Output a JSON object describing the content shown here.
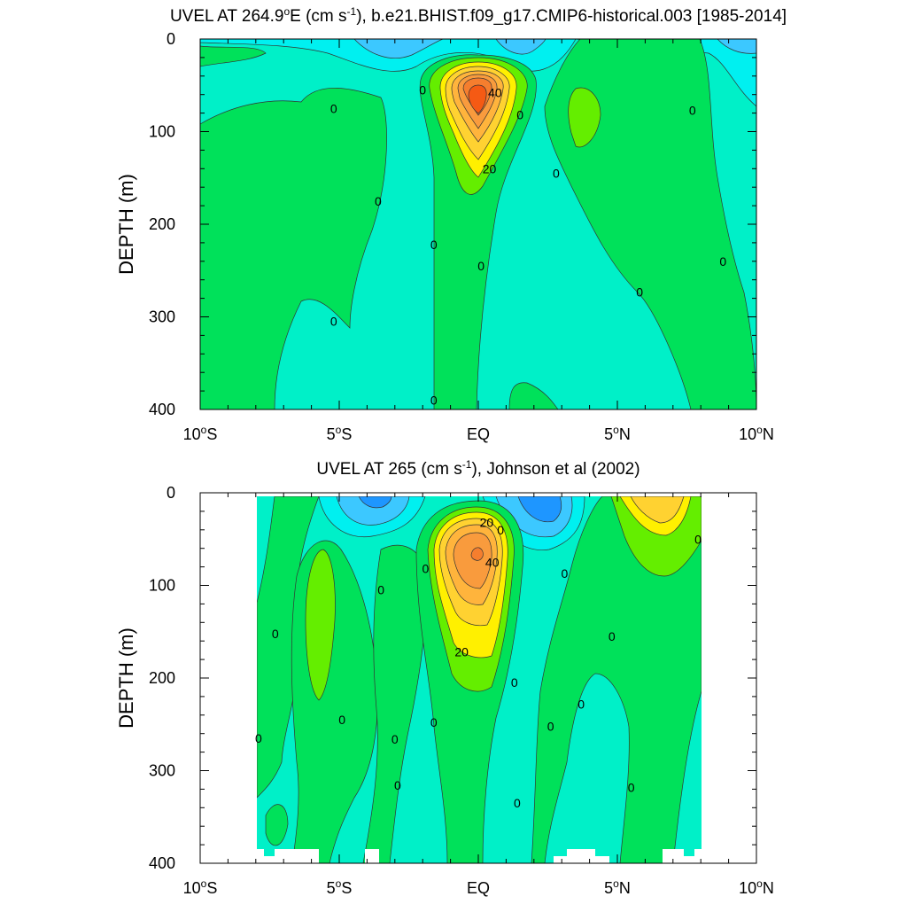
{
  "panels": [
    {
      "title_main": "UVEL AT 264.9",
      "title_deg": "o",
      "title_after_deg": "E (cm s",
      "title_sup": "-1",
      "title_rest": "), b.e21.BHIST.f09_g17.CMIP6-historical.003 [1985-2014]",
      "ylabel": "DEPTH (m)"
    },
    {
      "title_main": "UVEL AT 265 (cm s",
      "title_sup": "-1",
      "title_rest": "), Johnson et al (2002)",
      "ylabel": "DEPTH (m)"
    }
  ],
  "axis": {
    "x_ticks": [
      {
        "lon": -10,
        "label": "10",
        "deg": "o",
        "hemi": "S"
      },
      {
        "lon": -5,
        "label": "5",
        "deg": "o",
        "hemi": "S"
      },
      {
        "lon": 0,
        "label": "EQ",
        "deg": "",
        "hemi": ""
      },
      {
        "lon": 5,
        "label": "5",
        "deg": "o",
        "hemi": "N"
      },
      {
        "lon": 10,
        "label": "10",
        "deg": "o",
        "hemi": "N"
      }
    ],
    "y_ticks": [
      "0",
      "100",
      "200",
      "300",
      "400"
    ]
  },
  "colors": {
    "neg2": "#1e96ff",
    "neg1": "#3cc8ff",
    "neg0": "#00f0f0",
    "near_zero_neg": "#00f0c8",
    "near_zero_pos": "#00e15a",
    "pos1": "#64ee00",
    "pos2": "#fff000",
    "pos3": "#ffd231",
    "pos4": "#ffb43c",
    "pos5": "#f99b3d",
    "pos6": "#f57e2e",
    "pos7": "#f55a14"
  },
  "chart_data": [
    {
      "type": "contour",
      "title": "UVEL AT 264.9oE (cm s-1), b.e21.BHIST.f09_g17.CMIP6-historical.003 [1985-2014]",
      "ylabel": "DEPTH (m)",
      "xlim": [
        -10,
        10
      ],
      "ylim": [
        400,
        0
      ],
      "contour_labels": [
        {
          "text": "0",
          "lon": -5.2,
          "depth": 75
        },
        {
          "text": "0",
          "lon": -3.6,
          "depth": 175
        },
        {
          "text": "0",
          "lon": -5.2,
          "depth": 305
        },
        {
          "text": "0",
          "lon": -2.0,
          "depth": 55
        },
        {
          "text": "0",
          "lon": -1.6,
          "depth": 222
        },
        {
          "text": "0",
          "lon": -1.6,
          "depth": 390
        },
        {
          "text": "0",
          "lon": 0.1,
          "depth": 245
        },
        {
          "text": "0",
          "lon": 1.5,
          "depth": 82
        },
        {
          "text": "0",
          "lon": 2.8,
          "depth": 145
        },
        {
          "text": "0",
          "lon": 5.8,
          "depth": 273
        },
        {
          "text": "0",
          "lon": 7.7,
          "depth": 77
        },
        {
          "text": "0",
          "lon": 8.8,
          "depth": 240
        },
        {
          "text": "40",
          "lon": 0.6,
          "depth": 58
        },
        {
          "text": "20",
          "lon": 0.4,
          "depth": 140
        }
      ],
      "core": {
        "lon": -0.1,
        "depth": 72,
        "max_level": 50
      }
    },
    {
      "type": "contour",
      "title": "UVEL AT 265 (cm s-1), Johnson et al (2002)",
      "ylabel": "DEPTH (m)",
      "xlim": [
        -10,
        10
      ],
      "ylim": [
        400,
        0
      ],
      "contour_labels": [
        {
          "text": "0",
          "lon": -7.3,
          "depth": 152
        },
        {
          "text": "0",
          "lon": -7.9,
          "depth": 265
        },
        {
          "text": "0",
          "lon": -4.9,
          "depth": 245
        },
        {
          "text": "0",
          "lon": -3.5,
          "depth": 105
        },
        {
          "text": "0",
          "lon": -3.0,
          "depth": 266
        },
        {
          "text": "0",
          "lon": -2.9,
          "depth": 316
        },
        {
          "text": "0",
          "lon": -1.9,
          "depth": 82
        },
        {
          "text": "0",
          "lon": -1.6,
          "depth": 248
        },
        {
          "text": "0",
          "lon": 0.8,
          "depth": 40
        },
        {
          "text": "0",
          "lon": 1.3,
          "depth": 205
        },
        {
          "text": "0",
          "lon": 1.4,
          "depth": 335
        },
        {
          "text": "0",
          "lon": 3.1,
          "depth": 87
        },
        {
          "text": "0",
          "lon": 2.6,
          "depth": 252
        },
        {
          "text": "0",
          "lon": 3.7,
          "depth": 228
        },
        {
          "text": "0",
          "lon": 4.8,
          "depth": 155
        },
        {
          "text": "0",
          "lon": 5.5,
          "depth": 318
        },
        {
          "text": "0",
          "lon": 7.9,
          "depth": 50
        },
        {
          "text": "20",
          "lon": 0.3,
          "depth": 32
        },
        {
          "text": "40",
          "lon": 0.5,
          "depth": 75
        },
        {
          "text": "20",
          "lon": -0.6,
          "depth": 172
        }
      ],
      "core": {
        "lon": -0.2,
        "depth": 65,
        "max_level": 40
      }
    }
  ]
}
